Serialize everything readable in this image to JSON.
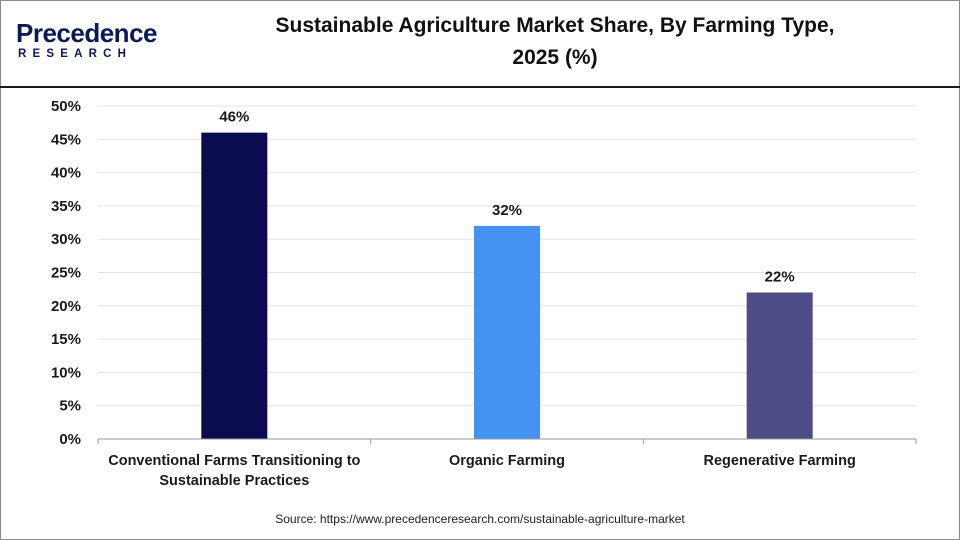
{
  "logo": {
    "word": "Precedence",
    "sub": "RESEARCH"
  },
  "title_line1": "Sustainable Agriculture Market Share, By Farming Type,",
  "title_line2": "2025 (%)",
  "source": "Source: https://www.precedenceresearch.com/sustainable-agriculture-market",
  "chart_data": {
    "type": "bar",
    "title": "Sustainable Agriculture Market Share, By Farming Type, 2025 (%)",
    "categories": [
      [
        "Conventional Farms Transitioning to",
        "Sustainable Practices"
      ],
      [
        "Organic Farming"
      ],
      [
        "Regenerative Farming"
      ]
    ],
    "values": [
      46,
      32,
      22
    ],
    "data_labels": [
      "46%",
      "32%",
      "22%"
    ],
    "colors": [
      "#0b0b4f",
      "#4593f0",
      "#4c4d86"
    ],
    "ylim": [
      0,
      50
    ],
    "yticks": [
      0,
      5,
      10,
      15,
      20,
      25,
      30,
      35,
      40,
      45,
      50
    ],
    "ytick_labels": [
      "0%",
      "5%",
      "10%",
      "15%",
      "20%",
      "25%",
      "30%",
      "35%",
      "40%",
      "45%",
      "50%"
    ],
    "grid": true,
    "xlabel": "",
    "ylabel": ""
  }
}
